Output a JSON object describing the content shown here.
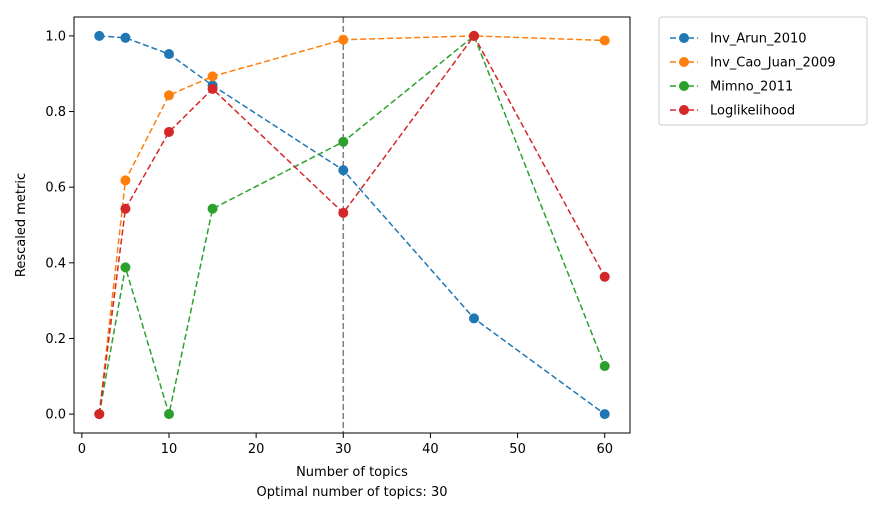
{
  "chart_data": {
    "type": "line",
    "xlabel": "Number of topics",
    "ylabel": "Rescaled metric",
    "subtitle": "Optimal number of topics: 30",
    "xlim": [
      -0.9,
      62.9
    ],
    "ylim": [
      -0.05,
      1.05
    ],
    "x_ticks": [
      0,
      10,
      20,
      30,
      40,
      50,
      60
    ],
    "y_ticks": [
      0.0,
      0.2,
      0.4,
      0.6,
      0.8,
      1.0
    ],
    "x_tick_labels": [
      "0",
      "10",
      "20",
      "30",
      "40",
      "50",
      "60"
    ],
    "y_tick_labels": [
      "0.0",
      "0.2",
      "0.4",
      "0.6",
      "0.8",
      "1.0"
    ],
    "vline": {
      "x": 30,
      "color": "#7f7f7f"
    },
    "legend_position": "outside-top-right",
    "x": [
      2,
      5,
      10,
      15,
      30,
      45,
      60
    ],
    "series": [
      {
        "name": "Inv_Arun_2010",
        "color": "#1f77b4",
        "values": [
          1.0,
          0.995,
          0.952,
          0.869,
          0.645,
          0.253,
          0.0
        ]
      },
      {
        "name": "Inv_Cao_Juan_2009",
        "color": "#ff7f0e",
        "values": [
          0.0,
          0.618,
          0.843,
          0.893,
          0.99,
          1.0,
          0.988
        ]
      },
      {
        "name": "Mimno_2011",
        "color": "#2ca02c",
        "values": [
          0.0,
          0.388,
          0.0,
          0.543,
          0.72,
          1.0,
          0.127
        ]
      },
      {
        "name": "Loglikelihood",
        "color": "#d62728",
        "values": [
          0.0,
          0.543,
          0.746,
          0.86,
          0.532,
          1.0,
          0.363
        ]
      }
    ]
  }
}
